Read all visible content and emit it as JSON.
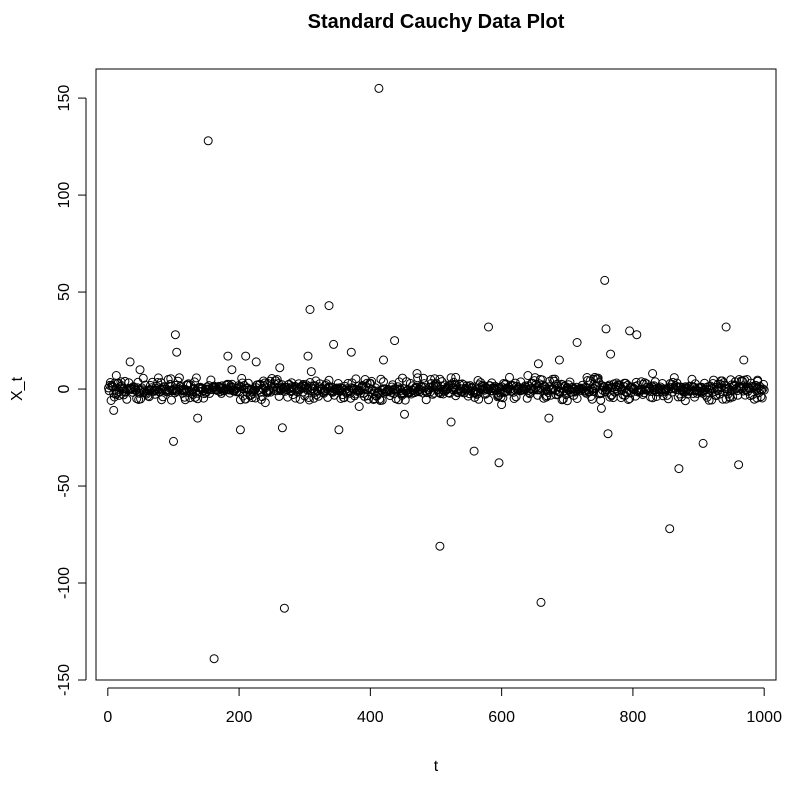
{
  "chart_data": {
    "type": "scatter",
    "title": "Standard Cauchy Data Plot",
    "xlabel": "t",
    "ylabel": "X_t",
    "xlim": [
      -18,
      1018
    ],
    "ylim": [
      -150,
      165
    ],
    "x_ticks": [
      0,
      200,
      400,
      600,
      800,
      1000
    ],
    "y_ticks": [
      -150,
      -100,
      -50,
      0,
      50,
      100,
      150
    ],
    "grid": false,
    "legend": "none",
    "marker": "open-circle",
    "color": "#000000",
    "series": [
      {
        "notable_points": [
          {
            "x": 100,
            "y": -27
          },
          {
            "x": 103,
            "y": 28
          },
          {
            "x": 105,
            "y": 19
          },
          {
            "x": 137,
            "y": -15
          },
          {
            "x": 153,
            "y": 128
          },
          {
            "x": 162,
            "y": -139
          },
          {
            "x": 183,
            "y": 17
          },
          {
            "x": 202,
            "y": -21
          },
          {
            "x": 210,
            "y": 17
          },
          {
            "x": 226,
            "y": 14
          },
          {
            "x": 262,
            "y": 11
          },
          {
            "x": 266,
            "y": -20
          },
          {
            "x": 269,
            "y": -113
          },
          {
            "x": 308,
            "y": 41
          },
          {
            "x": 310,
            "y": 9
          },
          {
            "x": 337,
            "y": 43
          },
          {
            "x": 344,
            "y": 23
          },
          {
            "x": 352,
            "y": -21
          },
          {
            "x": 371,
            "y": 19
          },
          {
            "x": 413,
            "y": 155
          },
          {
            "x": 420,
            "y": 15
          },
          {
            "x": 437,
            "y": 25
          },
          {
            "x": 452,
            "y": -13
          },
          {
            "x": 506,
            "y": -81
          },
          {
            "x": 523,
            "y": -17
          },
          {
            "x": 558,
            "y": -32
          },
          {
            "x": 580,
            "y": 32
          },
          {
            "x": 596,
            "y": -38
          },
          {
            "x": 656,
            "y": 13
          },
          {
            "x": 660,
            "y": -110
          },
          {
            "x": 672,
            "y": -15
          },
          {
            "x": 688,
            "y": 15
          },
          {
            "x": 715,
            "y": 24
          },
          {
            "x": 752,
            "y": -10
          },
          {
            "x": 757,
            "y": 56
          },
          {
            "x": 759,
            "y": 31
          },
          {
            "x": 762,
            "y": -23
          },
          {
            "x": 766,
            "y": 18
          },
          {
            "x": 795,
            "y": 30
          },
          {
            "x": 806,
            "y": 28
          },
          {
            "x": 856,
            "y": -72
          },
          {
            "x": 870,
            "y": -41
          },
          {
            "x": 907,
            "y": -28
          },
          {
            "x": 942,
            "y": 32
          },
          {
            "x": 961,
            "y": -39
          },
          {
            "x": 969,
            "y": 15
          },
          {
            "x": 9,
            "y": -11
          },
          {
            "x": 34,
            "y": 14
          },
          {
            "x": 13,
            "y": 7
          },
          {
            "x": 49,
            "y": 10
          },
          {
            "x": 189,
            "y": 10
          },
          {
            "x": 240,
            "y": -7
          },
          {
            "x": 305,
            "y": 17
          },
          {
            "x": 383,
            "y": -9
          },
          {
            "x": 471,
            "y": 8
          },
          {
            "x": 530,
            "y": 6
          },
          {
            "x": 600,
            "y": -8
          },
          {
            "x": 640,
            "y": 7
          },
          {
            "x": 700,
            "y": -6
          },
          {
            "x": 740,
            "y": 5
          },
          {
            "x": 830,
            "y": 8
          },
          {
            "x": 880,
            "y": -6
          },
          {
            "x": 990,
            "y": 4
          }
        ],
        "band_seed": 20240,
        "band_n": 1000,
        "band_scale": 1.6
      }
    ]
  }
}
